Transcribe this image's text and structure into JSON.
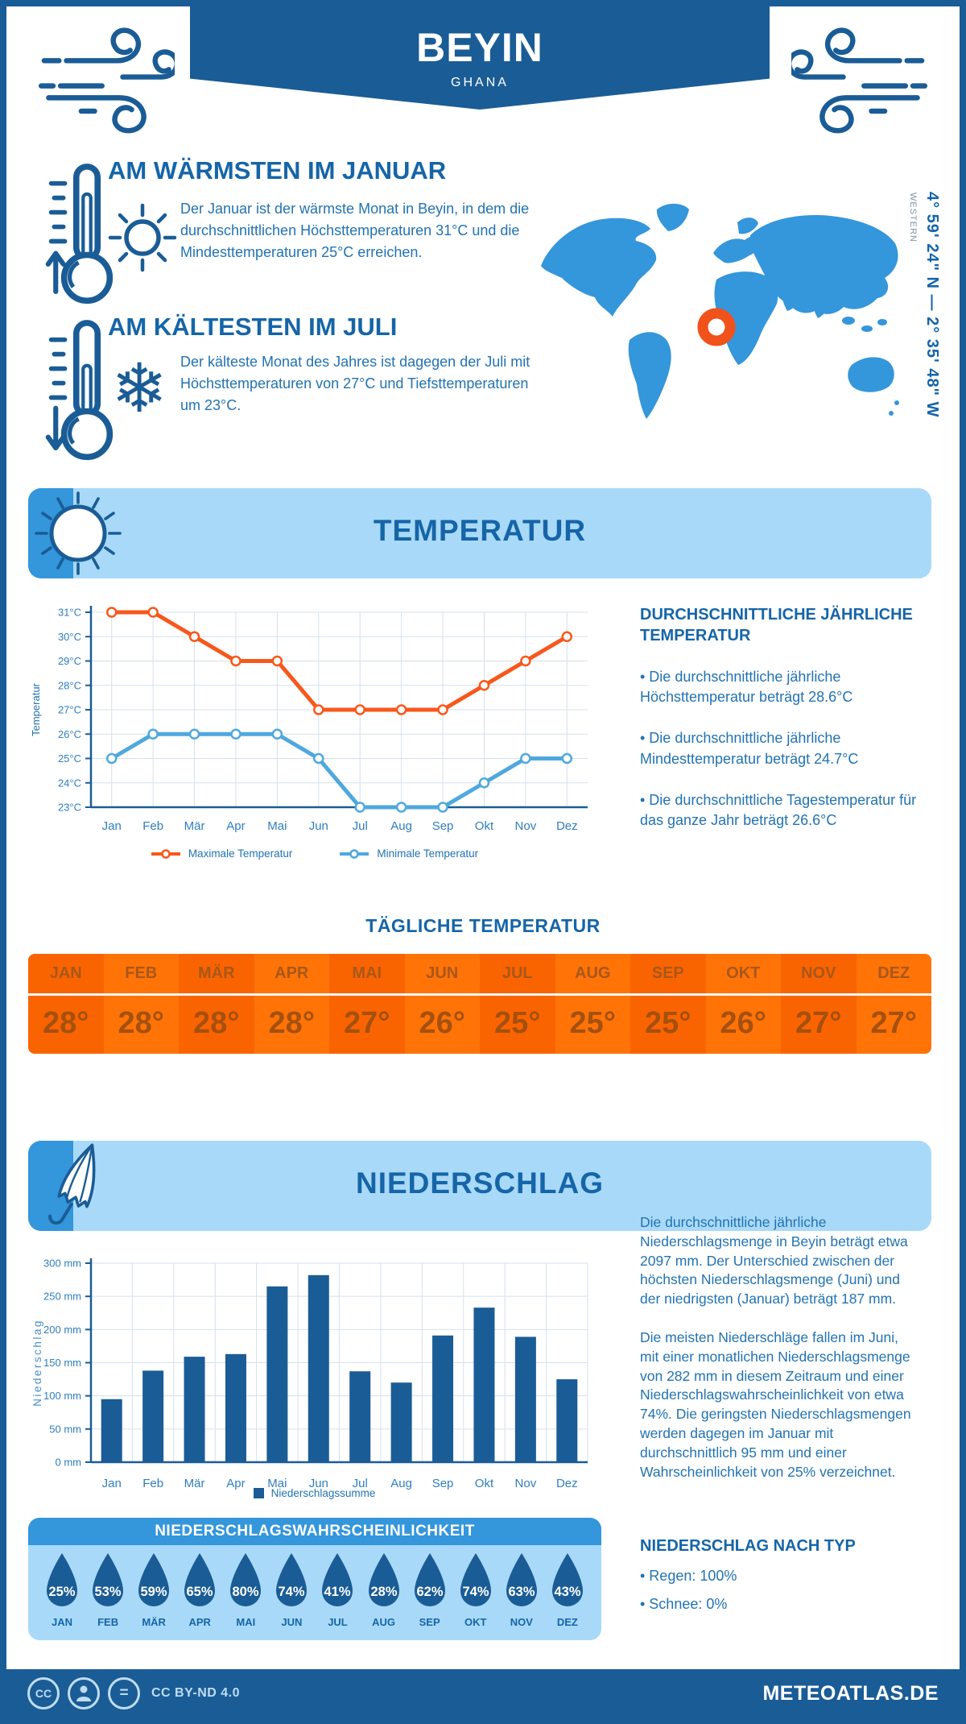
{
  "header": {
    "title": "BEYIN",
    "subtitle": "GHANA"
  },
  "location": {
    "coordinates": "4° 59' 24\" N — 2° 35' 48\" W",
    "region": "WESTERN"
  },
  "warmest": {
    "title": "AM WÄRMSTEN IM JANUAR",
    "text": "Der Januar ist der wärmste Monat in Beyin, in dem die durchschnittlichen Höchsttemperaturen 31°C und die Mindesttemperaturen 25°C erreichen."
  },
  "coldest": {
    "title": "AM KÄLTESTEN IM JULI",
    "text": "Der kälteste Monat des Jahres ist dagegen der Juli mit Höchsttemperaturen von 27°C und Tiefsttemperaturen um 23°C."
  },
  "temperature_section": {
    "banner": "TEMPERATUR",
    "annual": {
      "title": "DURCHSCHNITTLICHE JÄHRLICHE TEMPERATUR",
      "bullets": [
        "• Die durchschnittliche jährliche Höchsttemperatur beträgt 28.6°C",
        "• Die durchschnittliche jährliche Mindesttemperatur beträgt 24.7°C",
        "• Die durchschnittliche Tagestemperatur für das ganze Jahr beträgt 26.6°C"
      ]
    },
    "daily": {
      "title": "TÄGLICHE TEMPERATUR",
      "months": [
        "JAN",
        "FEB",
        "MÄR",
        "APR",
        "MAI",
        "JUN",
        "JUL",
        "AUG",
        "SEP",
        "OKT",
        "NOV",
        "DEZ"
      ],
      "values": [
        "28°",
        "28°",
        "28°",
        "28°",
        "27°",
        "26°",
        "25°",
        "25°",
        "25°",
        "26°",
        "27°",
        "27°"
      ]
    }
  },
  "precipitation_section": {
    "banner": "NIEDERSCHLAG",
    "paragraph1": "Die durchschnittliche jährliche Niederschlagsmenge in Beyin beträgt etwa 2097 mm. Der Unterschied zwischen der höchsten Niederschlagsmenge (Juni) und der niedrigsten (Januar) beträgt 187 mm.",
    "paragraph2": "Die meisten Niederschläge fallen im Juni, mit einer monatlichen Niederschlagsmenge von 282 mm in diesem Zeitraum und einer Niederschlagswahrscheinlichkeit von etwa 74%. Die geringsten Niederschlagsmengen werden dagegen im Januar mit durchschnittlich 95 mm und einer Wahrscheinlichkeit von 25% verzeichnet.",
    "by_type": {
      "title": "NIEDERSCHLAG NACH TYP",
      "bullets": [
        "• Regen: 100%",
        "• Schnee: 0%"
      ]
    },
    "probability": {
      "title": "NIEDERSCHLAGSWAHRSCHEINLICHKEIT",
      "months": [
        "JAN",
        "FEB",
        "MÄR",
        "APR",
        "MAI",
        "JUN",
        "JUL",
        "AUG",
        "SEP",
        "OKT",
        "NOV",
        "DEZ"
      ],
      "values": [
        "25%",
        "53%",
        "59%",
        "65%",
        "80%",
        "74%",
        "41%",
        "28%",
        "62%",
        "74%",
        "63%",
        "43%"
      ]
    }
  },
  "chart_data": [
    {
      "type": "line",
      "title": "",
      "categories": [
        "Jan",
        "Feb",
        "Mär",
        "Apr",
        "Mai",
        "Jun",
        "Jul",
        "Aug",
        "Sep",
        "Okt",
        "Nov",
        "Dez"
      ],
      "series": [
        {
          "name": "Maximale Temperatur",
          "color": "#F8571C",
          "values": [
            31,
            31,
            30,
            29,
            29,
            27,
            27,
            27,
            27,
            28,
            29,
            30
          ]
        },
        {
          "name": "Minimale Temperatur",
          "color": "#4FA8DE",
          "values": [
            25,
            26,
            26,
            26,
            26,
            25,
            23,
            23,
            23,
            24,
            25,
            25
          ]
        }
      ],
      "xlabel": "",
      "ylabel": "Temperatur",
      "ylim": [
        23,
        31
      ],
      "ytick_step": 1,
      "ytick_suffix": "°C",
      "grid": true,
      "legend_position": "bottom"
    },
    {
      "type": "bar",
      "title": "",
      "categories": [
        "Jan",
        "Feb",
        "Mär",
        "Apr",
        "Mai",
        "Jun",
        "Jul",
        "Aug",
        "Sep",
        "Okt",
        "Nov",
        "Dez"
      ],
      "series": [
        {
          "name": "Niederschlagssumme",
          "color": "#1A5C96",
          "values": [
            95,
            138,
            159,
            163,
            265,
            282,
            137,
            120,
            191,
            233,
            189,
            125
          ]
        }
      ],
      "xlabel": "",
      "ylabel": "Niederschlag",
      "ylim": [
        0,
        300
      ],
      "ytick_step": 50,
      "ytick_suffix": " mm",
      "grid": true,
      "legend_position": "bottom"
    }
  ],
  "colors": {
    "brand_dark": "#1A5C96",
    "heading_blue": "#1565A8",
    "body_blue": "#2273B2",
    "light_blue_bg": "#A9D9F8",
    "accent_blue": "#3496DB",
    "max_line_orange": "#F8571C",
    "min_line_blue": "#4FA8DE",
    "table_orange_a": "#FA6400",
    "table_orange_b": "#FF7307",
    "marker_orange": "#F1511B"
  },
  "footer": {
    "license": "CC BY-ND 4.0",
    "site": "METEOATLAS.DE"
  }
}
